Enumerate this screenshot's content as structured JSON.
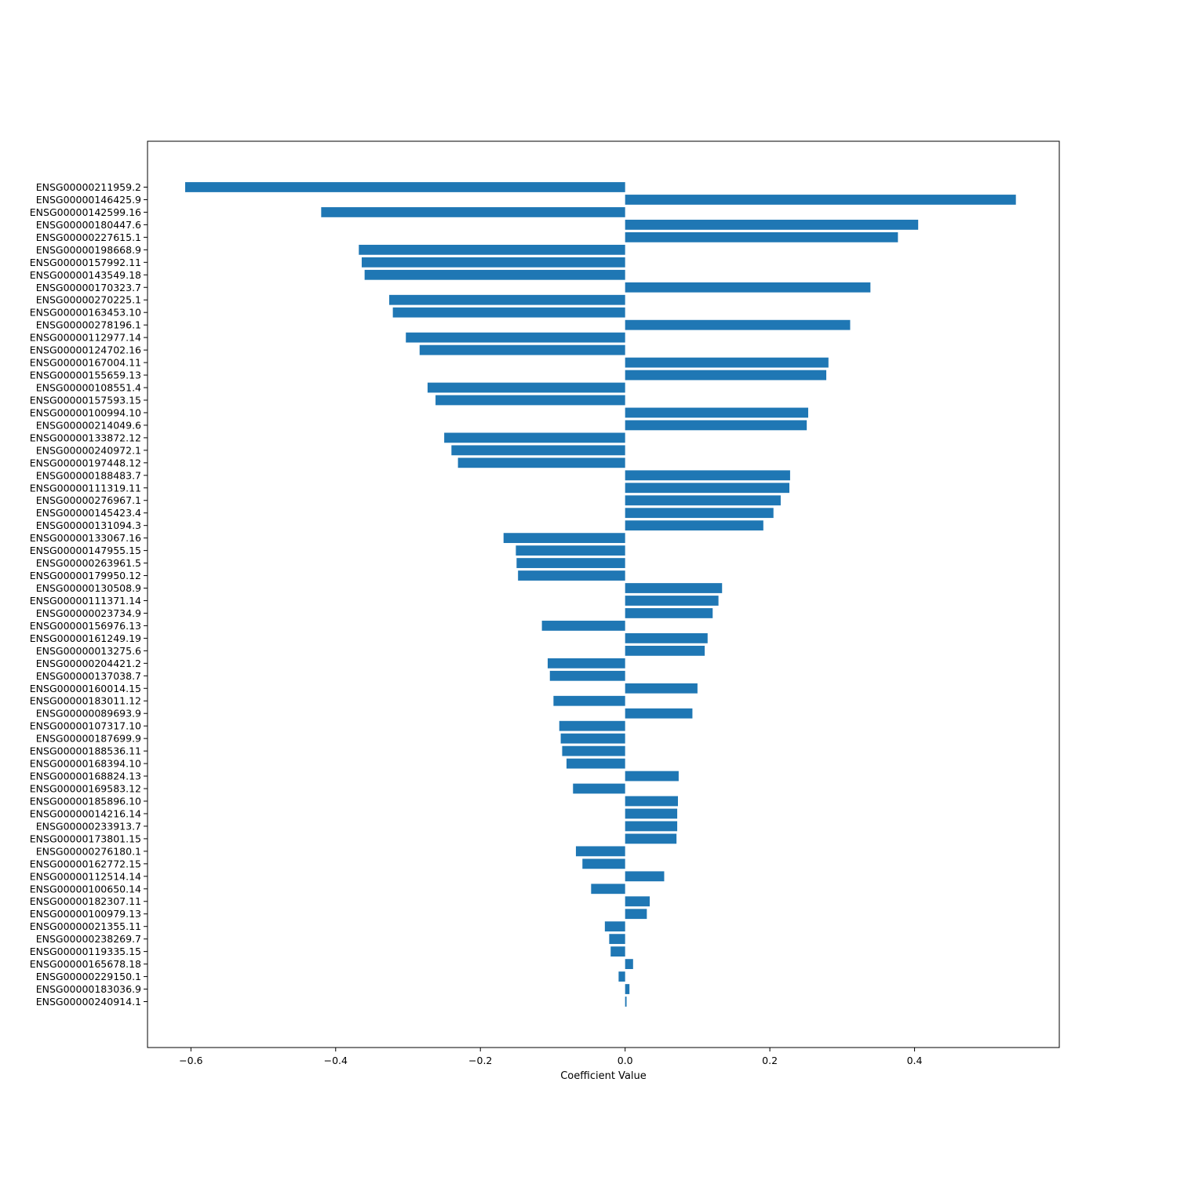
{
  "chart_data": {
    "type": "bar",
    "orientation": "horizontal",
    "title": "",
    "xlabel": "Coefficient Value",
    "ylabel": "",
    "xlim": [
      -0.66,
      0.6
    ],
    "x_ticks": [
      -0.6,
      -0.4,
      -0.2,
      0.0,
      0.2,
      0.4
    ],
    "x_tick_labels": [
      "−0.6",
      "−0.4",
      "−0.2",
      "0.0",
      "0.2",
      "0.4"
    ],
    "grid": false,
    "bar_color": "#1f77b4",
    "categories": [
      "ENSG00000211959.2",
      "ENSG00000146425.9",
      "ENSG00000142599.16",
      "ENSG00000180447.6",
      "ENSG00000227615.1",
      "ENSG00000198668.9",
      "ENSG00000157992.11",
      "ENSG00000143549.18",
      "ENSG00000170323.7",
      "ENSG00000270225.1",
      "ENSG00000163453.10",
      "ENSG00000278196.1",
      "ENSG00000112977.14",
      "ENSG00000124702.16",
      "ENSG00000167004.11",
      "ENSG00000155659.13",
      "ENSG00000108551.4",
      "ENSG00000157593.15",
      "ENSG00000100994.10",
      "ENSG00000214049.6",
      "ENSG00000133872.12",
      "ENSG00000240972.1",
      "ENSG00000197448.12",
      "ENSG00000188483.7",
      "ENSG00000111319.11",
      "ENSG00000276967.1",
      "ENSG00000145423.4",
      "ENSG00000131094.3",
      "ENSG00000133067.16",
      "ENSG00000147955.15",
      "ENSG00000263961.5",
      "ENSG00000179950.12",
      "ENSG00000130508.9",
      "ENSG00000111371.14",
      "ENSG00000023734.9",
      "ENSG00000156976.13",
      "ENSG00000161249.19",
      "ENSG00000013275.6",
      "ENSG00000204421.2",
      "ENSG00000137038.7",
      "ENSG00000160014.15",
      "ENSG00000183011.12",
      "ENSG00000089693.9",
      "ENSG00000107317.10",
      "ENSG00000187699.9",
      "ENSG00000188536.11",
      "ENSG00000168394.10",
      "ENSG00000168824.13",
      "ENSG00000169583.12",
      "ENSG00000185896.10",
      "ENSG00000014216.14",
      "ENSG00000233913.7",
      "ENSG00000173801.15",
      "ENSG00000276180.1",
      "ENSG00000162772.15",
      "ENSG00000112514.14",
      "ENSG00000100650.14",
      "ENSG00000182307.11",
      "ENSG00000100979.13",
      "ENSG00000021355.11",
      "ENSG00000238269.7",
      "ENSG00000119335.15",
      "ENSG00000165678.18",
      "ENSG00000229150.1",
      "ENSG00000183036.9",
      "ENSG00000240914.1"
    ],
    "values": [
      -0.608,
      0.54,
      -0.42,
      0.405,
      0.377,
      -0.368,
      -0.364,
      -0.36,
      0.339,
      -0.326,
      -0.321,
      0.311,
      -0.303,
      -0.284,
      0.281,
      0.278,
      -0.273,
      -0.262,
      0.253,
      0.251,
      -0.25,
      -0.24,
      -0.231,
      0.228,
      0.227,
      0.215,
      0.205,
      0.191,
      -0.168,
      -0.151,
      -0.15,
      -0.148,
      0.134,
      0.129,
      0.121,
      -0.115,
      0.114,
      0.11,
      -0.107,
      -0.104,
      0.1,
      -0.099,
      0.093,
      -0.091,
      -0.089,
      -0.087,
      -0.081,
      0.074,
      -0.072,
      0.073,
      0.072,
      0.072,
      0.071,
      -0.068,
      -0.059,
      0.054,
      -0.047,
      0.034,
      0.03,
      -0.028,
      -0.022,
      -0.02,
      0.011,
      -0.009,
      0.006,
      0.002
    ]
  }
}
